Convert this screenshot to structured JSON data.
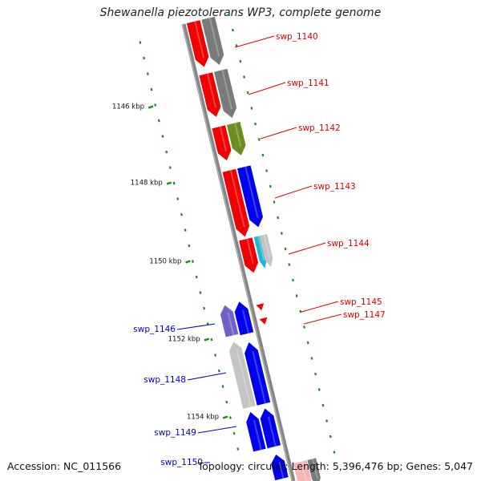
{
  "title": "Shewanella piezotolerans WP3, complete genome",
  "footer": {
    "accession": "Accession: NC_011566",
    "topology": "Topology: circular; Length: 5,396,476 bp; Genes: 5,047"
  },
  "scale_labels": [
    "1146 kbp",
    "1148 kbp",
    "1150 kbp",
    "1152 kbp",
    "1154 kbp"
  ],
  "colors": {
    "backbone": "#858585",
    "ticks": "#1c8a1c",
    "forward_label": "#e00000",
    "reverse_label": "#0000cc",
    "red": "#f00000",
    "gray": "#7a7a7a",
    "olive": "#6b8e23",
    "blue": "#0000ee",
    "slate": "#7060c8",
    "lightgray": "#c4c4c4",
    "cyan": "#20b8d0",
    "pink": "#f7b6b6"
  },
  "genes": [
    {
      "label": "swp_1140",
      "strand": "forward"
    },
    {
      "label": "swp_1141",
      "strand": "forward"
    },
    {
      "label": "swp_1142",
      "strand": "forward"
    },
    {
      "label": "swp_1143",
      "strand": "forward"
    },
    {
      "label": "swp_1144",
      "strand": "forward"
    },
    {
      "label": "swp_1145",
      "strand": "forward"
    },
    {
      "label": "swp_1147",
      "strand": "forward"
    },
    {
      "label": "swp_1146",
      "strand": "reverse"
    },
    {
      "label": "swp_1148",
      "strand": "reverse"
    },
    {
      "label": "swp_1149",
      "strand": "reverse"
    },
    {
      "label": "swp_1150",
      "strand": "reverse"
    }
  ]
}
